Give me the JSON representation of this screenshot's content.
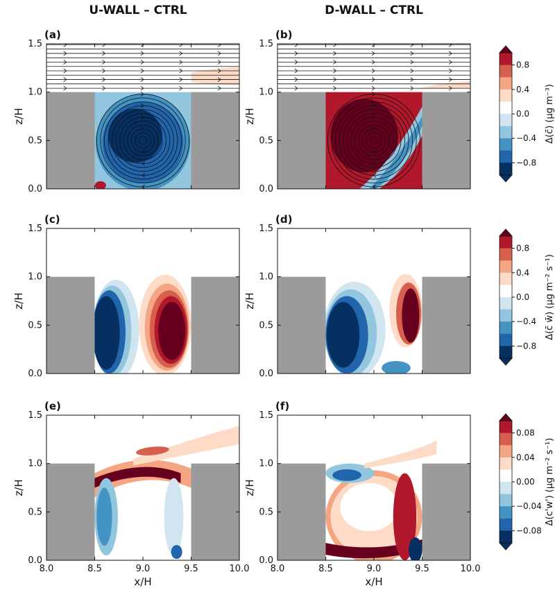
{
  "columns": [
    "U-WALL – CTRL",
    "D-WALL – CTRL"
  ],
  "panels": [
    {
      "tag": "(a)",
      "row": 0,
      "col": 0,
      "theme": "neg",
      "stream": true
    },
    {
      "tag": "(b)",
      "row": 0,
      "col": 1,
      "theme": "pos",
      "stream": true
    },
    {
      "tag": "(c)",
      "row": 1,
      "col": 0,
      "theme": "flux_u",
      "stream": false
    },
    {
      "tag": "(d)",
      "row": 1,
      "col": 1,
      "theme": "flux_d",
      "stream": false
    },
    {
      "tag": "(e)",
      "row": 2,
      "col": 0,
      "theme": "turb_u",
      "stream": false
    },
    {
      "tag": "(f)",
      "row": 2,
      "col": 1,
      "theme": "turb_d",
      "stream": false
    }
  ],
  "axes": {
    "xlabel": "x/H",
    "ylabel": "z/H",
    "xlim": [
      8.0,
      10.0
    ],
    "ylim": [
      0.0,
      1.5
    ],
    "xticks": [
      "8.0",
      "8.5",
      "9.0",
      "9.5",
      "10.0"
    ],
    "yticks": [
      "0.0",
      "0.5",
      "1.0",
      "1.5"
    ]
  },
  "colorbars": [
    {
      "label": "Δ(c̄)  (μg m⁻³)",
      "ticks": [
        "0.8",
        "0.4",
        "0.0",
        "−0.4",
        "−0.8"
      ]
    },
    {
      "label": "Δ(c̄ w̄)  (μg m⁻² s⁻¹)",
      "ticks": [
        "0.8",
        "0.4",
        "0.0",
        "−0.4",
        "−0.8"
      ]
    },
    {
      "label": "Δ(c'w')  (μg m⁻² s⁻¹)",
      "ticks": [
        "0.08",
        "0.04",
        "0.00",
        "−0.04",
        "−0.08"
      ]
    }
  ],
  "colors": {
    "levels": [
      "#053061",
      "#2166ac",
      "#4393c3",
      "#92c5de",
      "#d1e5f0",
      "#ffffff",
      "#fddbc7",
      "#f4a582",
      "#d6604d",
      "#b2182b",
      "#67001f"
    ],
    "building": "#9b9b9b"
  },
  "chart_data": {
    "type": "heatmap",
    "description_domain": "street canyon difference fields",
    "buildings": [
      {
        "x": [
          8.0,
          8.5
        ],
        "z": [
          0.0,
          1.0
        ]
      },
      {
        "x": [
          9.5,
          10.0
        ],
        "z": [
          0.0,
          1.0
        ]
      }
    ],
    "colorbar_ranges": [
      [
        -1.0,
        1.0
      ],
      [
        -1.0,
        1.0
      ],
      [
        -0.1,
        0.1
      ]
    ]
  }
}
